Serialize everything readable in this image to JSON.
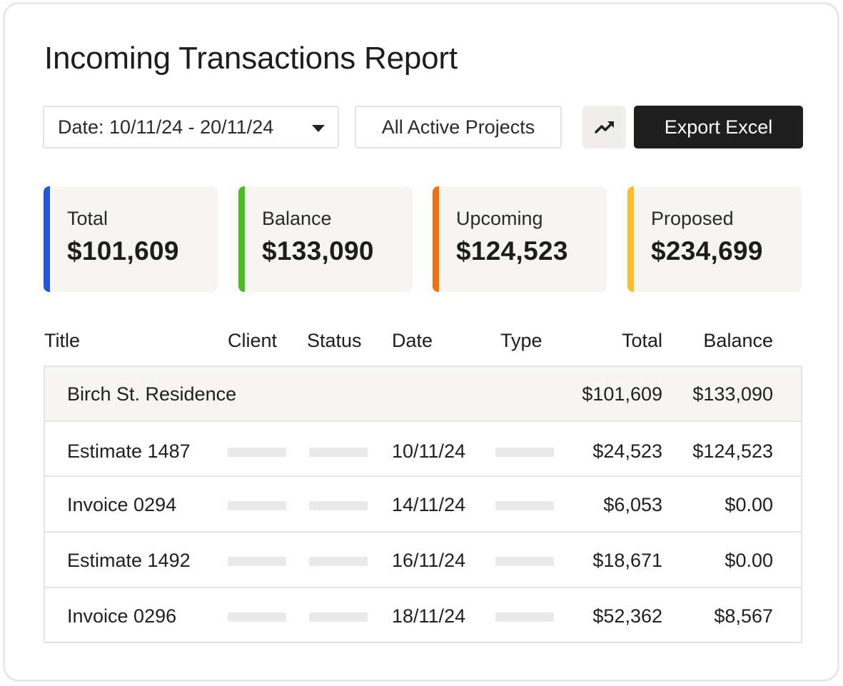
{
  "report": {
    "title": "Incoming Transactions Report"
  },
  "toolbar": {
    "date_range": "Date: 10/11/24 - 20/11/24",
    "project_filter": "All Active Projects",
    "chart_icon": "trending-up-icon",
    "export_label": "Export Excel"
  },
  "summary": [
    {
      "label": "Total",
      "value": "$101,609",
      "color": "#2356e0"
    },
    {
      "label": "Balance",
      "value": "$133,090",
      "color": "#4cbc23"
    },
    {
      "label": "Upcoming",
      "value": "$124,523",
      "color": "#f2700d"
    },
    {
      "label": "Proposed",
      "value": "$234,699",
      "color": "#fbbd2a"
    }
  ],
  "table": {
    "columns": [
      "Title",
      "Client",
      "Status",
      "Date",
      "Type",
      "Total",
      "Balance"
    ],
    "group": {
      "title": "Birch St. Residence",
      "total": "$101,609",
      "balance": "$133,090"
    },
    "rows": [
      {
        "title": "Estimate 1487",
        "date": "10/11/24",
        "total": "$24,523",
        "balance": "$124,523"
      },
      {
        "title": "Invoice 0294",
        "date": "14/11/24",
        "total": "$6,053",
        "balance": "$0.00"
      },
      {
        "title": "Estimate 1492",
        "date": "16/11/24",
        "total": "$18,671",
        "balance": "$0.00"
      },
      {
        "title": "Invoice 0296",
        "date": "18/11/24",
        "total": "$52,362",
        "balance": "$8,567"
      }
    ]
  }
}
